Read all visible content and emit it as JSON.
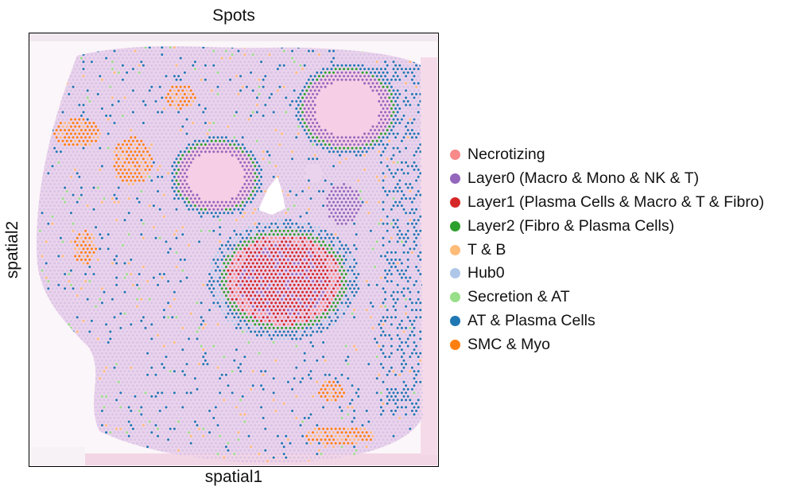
{
  "chart_data": {
    "type": "scatter",
    "title": "Spots",
    "xlabel": "spatial1",
    "ylabel": "spatial2",
    "xticks": [],
    "yticks": [],
    "legend_position": "right",
    "background": "tissue image",
    "series": [
      {
        "name": "Necrotizing",
        "color": "#f88a89"
      },
      {
        "name": "Layer0 (Macro & Mono & NK & T)",
        "color": "#9467bd"
      },
      {
        "name": "Layer1 (Plasma Cells & Macro & T & Fibro)",
        "color": "#d62728"
      },
      {
        "name": "Layer2 (Fibro & Plasma Cells)",
        "color": "#2ca02c"
      },
      {
        "name": "T & B",
        "color": "#ffbb78"
      },
      {
        "name": "Hub0",
        "color": "#aec7e8"
      },
      {
        "name": "Secretion & AT",
        "color": "#98df8a"
      },
      {
        "name": "AT & Plasma Cells",
        "color": "#1f77b4"
      },
      {
        "name": "SMC & Myo",
        "color": "#ff7f0e"
      }
    ]
  }
}
